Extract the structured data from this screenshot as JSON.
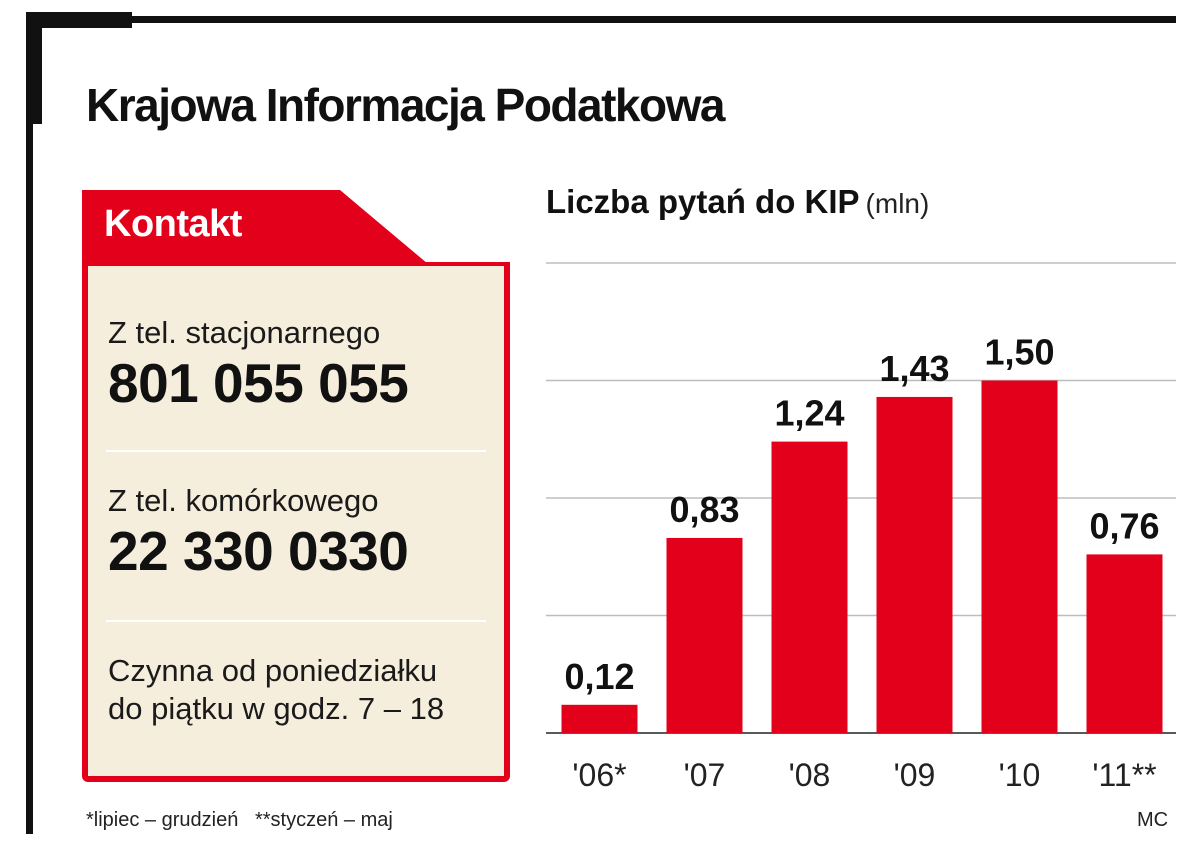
{
  "title": "Krajowa Informacja Podatkowa",
  "contact": {
    "header": "Kontakt",
    "landline_label": "Z tel. stacjonarnego",
    "landline_number": "801 055 055",
    "mobile_label": "Z tel. komórkowego",
    "mobile_number": "22 330 0330",
    "hours_line1": "Czynna od poniedziałku",
    "hours_line2": "do piątku w godz. 7 – 18"
  },
  "footnote": "*lipiec – grudzień   **styczeń – maj",
  "credit": "MC",
  "colors": {
    "accent": "#e2001a",
    "card_bg": "#f6eedc",
    "gridline": "#bdbdbd",
    "text": "#111111"
  },
  "chart_data": {
    "type": "bar",
    "title": "Liczba pytań do KIP",
    "unit": "(mln)",
    "categories": [
      "'06*",
      "'07",
      "'08",
      "'09",
      "'10",
      "'11**"
    ],
    "values": [
      0.12,
      0.83,
      1.24,
      1.43,
      1.5,
      0.76
    ],
    "value_labels": [
      "0,12",
      "0,83",
      "1,24",
      "1,43",
      "1,50",
      "0,76"
    ],
    "ylim": [
      0,
      2.0
    ],
    "gridlines": [
      0.5,
      1.0,
      1.5,
      2.0
    ],
    "grid": true,
    "legend": "none"
  }
}
